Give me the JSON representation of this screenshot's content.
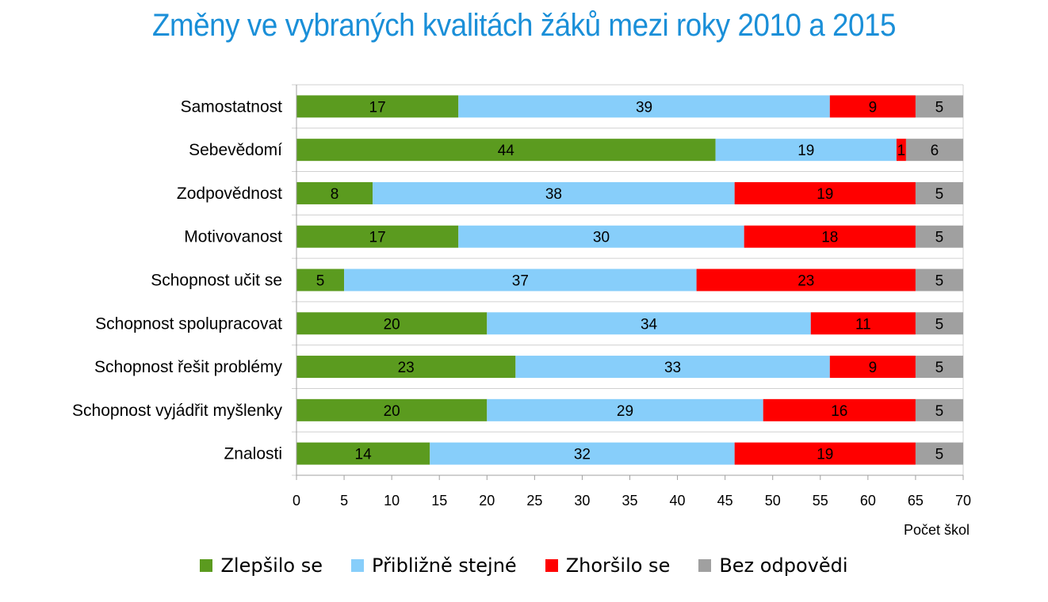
{
  "chart_data": {
    "type": "bar",
    "orientation": "horizontal",
    "stacked": true,
    "title": "Změny ve vybraných kvalitách žáků mezi roky 2010 a 2015",
    "xlabel": "Počet škol",
    "ylabel": "",
    "xlim": [
      0,
      70
    ],
    "xticks": [
      0,
      5,
      10,
      15,
      20,
      25,
      30,
      35,
      40,
      45,
      50,
      55,
      60,
      65,
      70
    ],
    "grid": true,
    "legend_position": "bottom",
    "categories": [
      "Samostatnost",
      "Sebevědomí",
      "Zodpovědnost",
      "Motivovanost",
      "Schopnost učit se",
      "Schopnost spolupracovat",
      "Schopnost řešit problémy",
      "Schopnost vyjádřit myšlenky",
      "Znalosti"
    ],
    "series": [
      {
        "name": "Zlepšilo se",
        "color": "#5b9b1f",
        "values": [
          17,
          44,
          8,
          17,
          5,
          20,
          23,
          20,
          14
        ]
      },
      {
        "name": "Přibližně stejné",
        "color": "#87cefa",
        "values": [
          39,
          19,
          38,
          30,
          37,
          34,
          33,
          29,
          32
        ]
      },
      {
        "name": "Zhoršilo se",
        "color": "#ff0000",
        "values": [
          9,
          1,
          19,
          18,
          23,
          11,
          9,
          16,
          19
        ]
      },
      {
        "name": "Bez odpovědi",
        "color": "#a0a0a0",
        "values": [
          5,
          6,
          5,
          5,
          5,
          5,
          5,
          5,
          5
        ]
      }
    ]
  }
}
